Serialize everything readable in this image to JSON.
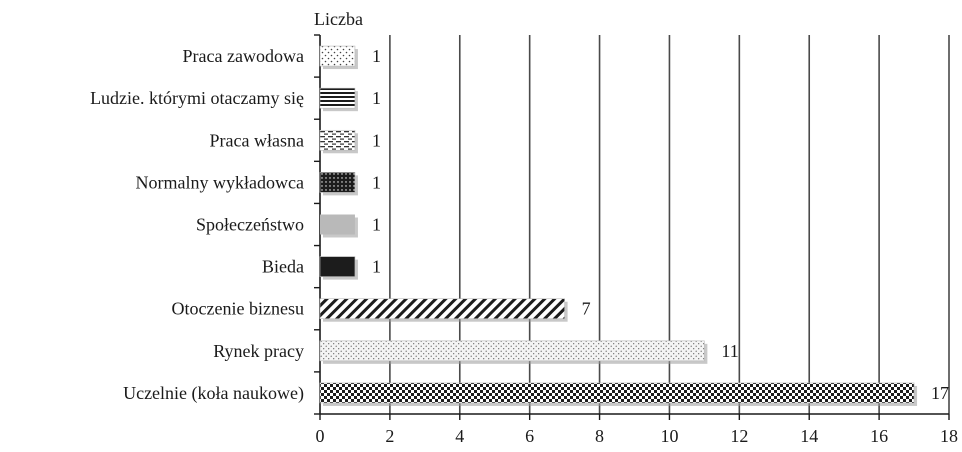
{
  "chart_data": {
    "type": "bar",
    "orientation": "horizontal",
    "title": "",
    "xlabel": "",
    "ylabel": "Liczba",
    "xlim": [
      0,
      18
    ],
    "xticks": [
      0,
      2,
      4,
      6,
      8,
      10,
      12,
      14,
      16,
      18
    ],
    "grid": "vertical",
    "categories": [
      "Praca zawodowa",
      "Ludzie. którymi otaczamy się",
      "Praca własna",
      "Normalny wykładowca",
      "Społeczeństwo",
      "Bieda",
      "Otoczenie biznesu",
      "Rynek pracy",
      "Uczelnie (koła naukowe)"
    ],
    "values": [
      1,
      1,
      1,
      1,
      1,
      1,
      7,
      11,
      17
    ],
    "patterns": [
      "sparse-dots",
      "horizontal-stripes",
      "dashed-lines",
      "dark-dots",
      "solid-gray",
      "solid-black",
      "diagonal-stripes",
      "fine-dots",
      "checker"
    ],
    "colors": {
      "grid": "#4a4a4a",
      "axis": "#1a1a1a",
      "solid_gray": "#b9b9b9",
      "solid_black": "#1c1c1c"
    }
  }
}
